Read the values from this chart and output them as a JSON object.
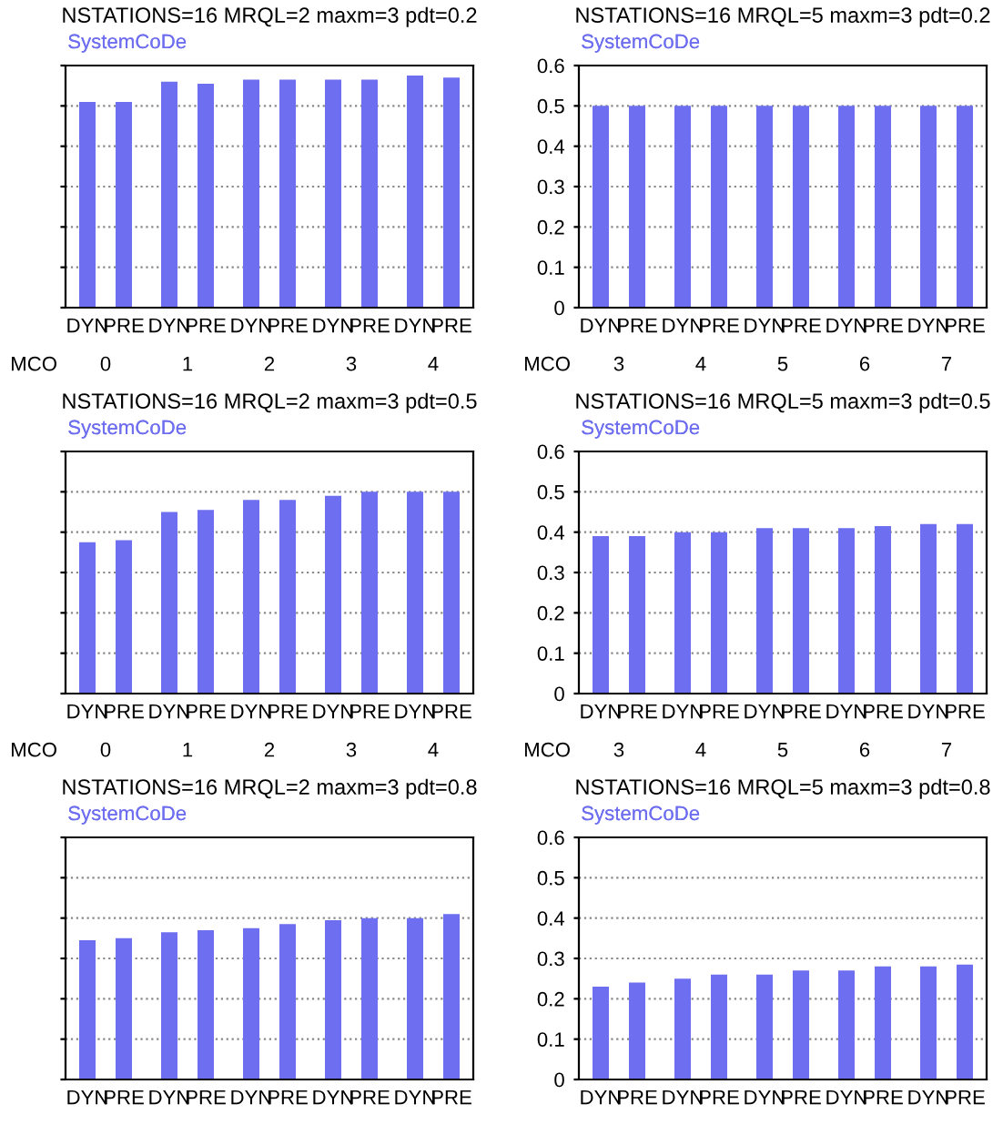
{
  "chart_data": [
    {
      "type": "bar",
      "title": "NSTATIONS=16 MRQL=2 maxm=3 pdt=0.2",
      "categories": [
        "DYN",
        "PRE",
        "DYN",
        "PRE",
        "DYN",
        "PRE",
        "DYN",
        "PRE",
        "DYN",
        "PRE"
      ],
      "series": [
        {
          "name": "SystemCoDe",
          "color": "#6e6ef0",
          "values": [
            0.51,
            0.51,
            0.56,
            0.555,
            0.565,
            0.565,
            0.565,
            0.565,
            0.575,
            0.57
          ]
        }
      ],
      "annotations": [
        "MCO",
        "0",
        "1",
        "2",
        "3",
        "4"
      ],
      "ylim": [
        0,
        0.6
      ],
      "yticks": [
        0,
        0.1,
        0.2,
        0.3,
        0.4,
        0.5,
        0.6
      ],
      "tick_labels": "x",
      "grid": "y",
      "legend": "top left"
    },
    {
      "type": "bar",
      "title": "NSTATIONS=16 MRQL=5 maxm=3 pdt=0.2",
      "categories": [
        "DYN",
        "PRE",
        "DYN",
        "PRE",
        "DYN",
        "PRE",
        "DYN",
        "PRE",
        "DYN",
        "PRE"
      ],
      "series": [
        {
          "name": "SystemCoDe",
          "color": "#6e6ef0",
          "values": [
            0.5,
            0.5,
            0.5,
            0.5,
            0.5,
            0.5,
            0.5,
            0.5,
            0.5,
            0.5
          ]
        }
      ],
      "annotations": [
        "MCO",
        "3",
        "4",
        "5",
        "6",
        "7"
      ],
      "ylim": [
        0,
        0.6
      ],
      "yticks": [
        0,
        0.1,
        0.2,
        0.3,
        0.4,
        0.5,
        0.6
      ],
      "grid": "y",
      "legend": "top left"
    },
    {
      "type": "bar",
      "title": "NSTATIONS=16 MRQL=2 maxm=3 pdt=0.5",
      "categories": [
        "DYN",
        "PRE",
        "DYN",
        "PRE",
        "DYN",
        "PRE",
        "DYN",
        "PRE",
        "DYN",
        "PRE"
      ],
      "series": [
        {
          "name": "SystemCoDe",
          "color": "#6e6ef0",
          "values": [
            0.375,
            0.38,
            0.45,
            0.455,
            0.48,
            0.48,
            0.49,
            0.5,
            0.5,
            0.5
          ]
        }
      ],
      "annotations": [
        "MCO",
        "0",
        "1",
        "2",
        "3",
        "4"
      ],
      "ylim": [
        0,
        0.6
      ],
      "yticks": [
        0,
        0.1,
        0.2,
        0.3,
        0.4,
        0.5,
        0.6
      ],
      "tick_labels": "x",
      "grid": "y",
      "legend": "top left"
    },
    {
      "type": "bar",
      "title": "NSTATIONS=16 MRQL=5 maxm=3 pdt=0.5",
      "categories": [
        "DYN",
        "PRE",
        "DYN",
        "PRE",
        "DYN",
        "PRE",
        "DYN",
        "PRE",
        "DYN",
        "PRE"
      ],
      "series": [
        {
          "name": "SystemCoDe",
          "color": "#6e6ef0",
          "values": [
            0.39,
            0.39,
            0.4,
            0.4,
            0.41,
            0.41,
            0.41,
            0.415,
            0.42,
            0.42
          ]
        }
      ],
      "annotations": [
        "MCO",
        "3",
        "4",
        "5",
        "6",
        "7"
      ],
      "ylim": [
        0,
        0.6
      ],
      "yticks": [
        0,
        0.1,
        0.2,
        0.3,
        0.4,
        0.5,
        0.6
      ],
      "grid": "y",
      "legend": "top left"
    },
    {
      "type": "bar",
      "title": "NSTATIONS=16 MRQL=2 maxm=3 pdt=0.8",
      "categories": [
        "DYN",
        "PRE",
        "DYN",
        "PRE",
        "DYN",
        "PRE",
        "DYN",
        "PRE",
        "DYN",
        "PRE"
      ],
      "series": [
        {
          "name": "SystemCoDe",
          "color": "#6e6ef0",
          "values": [
            0.345,
            0.35,
            0.365,
            0.37,
            0.375,
            0.385,
            0.395,
            0.4,
            0.4,
            0.41
          ]
        }
      ],
      "ylim": [
        0,
        0.6
      ],
      "yticks": [
        0,
        0.1,
        0.2,
        0.3,
        0.4,
        0.5,
        0.6
      ],
      "tick_labels": "x",
      "grid": "y",
      "legend": "top left"
    },
    {
      "type": "bar",
      "title": "NSTATIONS=16 MRQL=5 maxm=3 pdt=0.8",
      "categories": [
        "DYN",
        "PRE",
        "DYN",
        "PRE",
        "DYN",
        "PRE",
        "DYN",
        "PRE",
        "DYN",
        "PRE"
      ],
      "series": [
        {
          "name": "SystemCoDe",
          "color": "#6e6ef0",
          "values": [
            0.23,
            0.24,
            0.25,
            0.26,
            0.26,
            0.27,
            0.27,
            0.28,
            0.28,
            0.285
          ]
        }
      ],
      "ylim": [
        0,
        0.6
      ],
      "yticks": [
        0,
        0.1,
        0.2,
        0.3,
        0.4,
        0.5,
        0.6
      ],
      "grid": "y",
      "legend": "top left"
    }
  ]
}
